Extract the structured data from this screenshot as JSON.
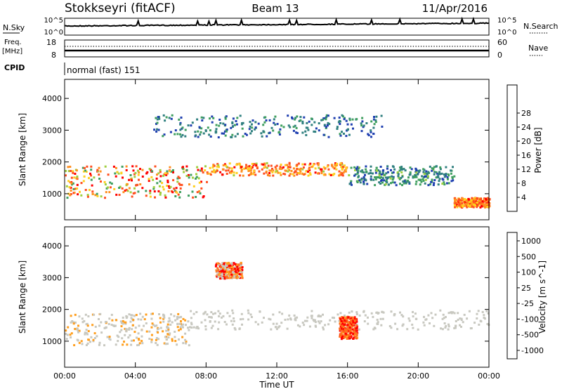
{
  "header": {
    "station": "Stokkseyri (fitACF)",
    "beam": "Beam 13",
    "date": "11/Apr/2016"
  },
  "strips": {
    "nsky_label": "N.Sky",
    "nsky_ticks": [
      "10^5",
      "10^0"
    ],
    "nsearch_label": "N.Search",
    "nsearch_ticks": [
      "10^5",
      "10^0"
    ],
    "freq_label": "Freq.",
    "freq_unit": "[MHz]",
    "freq_ticks": [
      "18",
      "8"
    ],
    "nave_label": "Nave",
    "nave_ticks": [
      "60",
      "0"
    ],
    "cpid_label": "CPID",
    "cpid_text": "normal (fast) 151"
  },
  "colors": {
    "power_scale": [
      "#1a1aff",
      "#1f3fb0",
      "#2f7f7f",
      "#3f9f5f",
      "#9fcf3f",
      "#ffcf1f",
      "#ff8f1f",
      "#ff4f1f",
      "#ff0000"
    ],
    "velocity_scale": [
      "#1f3fc0",
      "#2f6f9f",
      "#3f8f4f",
      "#6fcf3f",
      "#c8c8c0",
      "#c8c8c0",
      "#ff9f1f",
      "#ff6f1f",
      "#ff0000"
    ]
  },
  "chart_data": [
    {
      "type": "heatmap",
      "name": "power-panel",
      "title": "",
      "xlabel": "",
      "ylabel": "Slant Range [km]",
      "xlim": [
        0,
        24
      ],
      "ylim": [
        180,
        4600
      ],
      "x_ticks": [
        0,
        4,
        8,
        12,
        16,
        20,
        24
      ],
      "y_ticks": [
        "1000",
        "2000",
        "3000",
        "4000"
      ],
      "colorbar": {
        "label": "Power [dB]",
        "ticks": [
          "4",
          "8",
          "12",
          "16",
          "20",
          "24",
          "28"
        ],
        "range": [
          0,
          30
        ]
      },
      "features": [
        {
          "time_range": [
            0,
            8
          ],
          "range_km": [
            900,
            1900
          ],
          "value_range": [
            10,
            30
          ]
        },
        {
          "time_range": [
            8,
            16
          ],
          "range_km": [
            1600,
            2000
          ],
          "value_range": [
            16,
            28
          ]
        },
        {
          "time_range": [
            16,
            22
          ],
          "range_km": [
            1300,
            1900
          ],
          "value_range": [
            4,
            14
          ]
        },
        {
          "time_range": [
            22,
            24
          ],
          "range_km": [
            600,
            900
          ],
          "value_range": [
            18,
            28
          ]
        },
        {
          "time_range": [
            5,
            18
          ],
          "range_km": [
            2800,
            3500
          ],
          "value_range": [
            4,
            12
          ]
        }
      ]
    },
    {
      "type": "heatmap",
      "name": "velocity-panel",
      "title": "",
      "xlabel": "Time UT",
      "ylabel": "Slant Range [km]",
      "xlim": [
        0,
        24
      ],
      "ylim": [
        180,
        4600
      ],
      "x_ticks": [
        "00:00",
        "04:00",
        "08:00",
        "12:00",
        "16:00",
        "20:00",
        "00:00"
      ],
      "y_ticks": [
        "1000",
        "2000",
        "3000",
        "4000"
      ],
      "colorbar": {
        "label": "Velocity [m s^-1]",
        "ticks": [
          "1000",
          "500",
          "100",
          "25",
          "-25",
          "-100",
          "-500",
          "-1000"
        ],
        "range": [
          -1000,
          1000
        ]
      },
      "features": [
        {
          "time_range": [
            0,
            7
          ],
          "range_km": [
            900,
            1900
          ],
          "value_range": [
            -500,
            100
          ]
        },
        {
          "time_range": [
            7,
            24
          ],
          "range_km": [
            1400,
            2000
          ],
          "value_range": [
            -25,
            25
          ]
        },
        {
          "time_range": [
            15.5,
            16.5
          ],
          "range_km": [
            1100,
            1800
          ],
          "value_range": [
            -1000,
            -500
          ]
        },
        {
          "time_range": [
            8.5,
            10
          ],
          "range_km": [
            3000,
            3500
          ],
          "value_range": [
            -1000,
            -100
          ]
        }
      ]
    }
  ]
}
